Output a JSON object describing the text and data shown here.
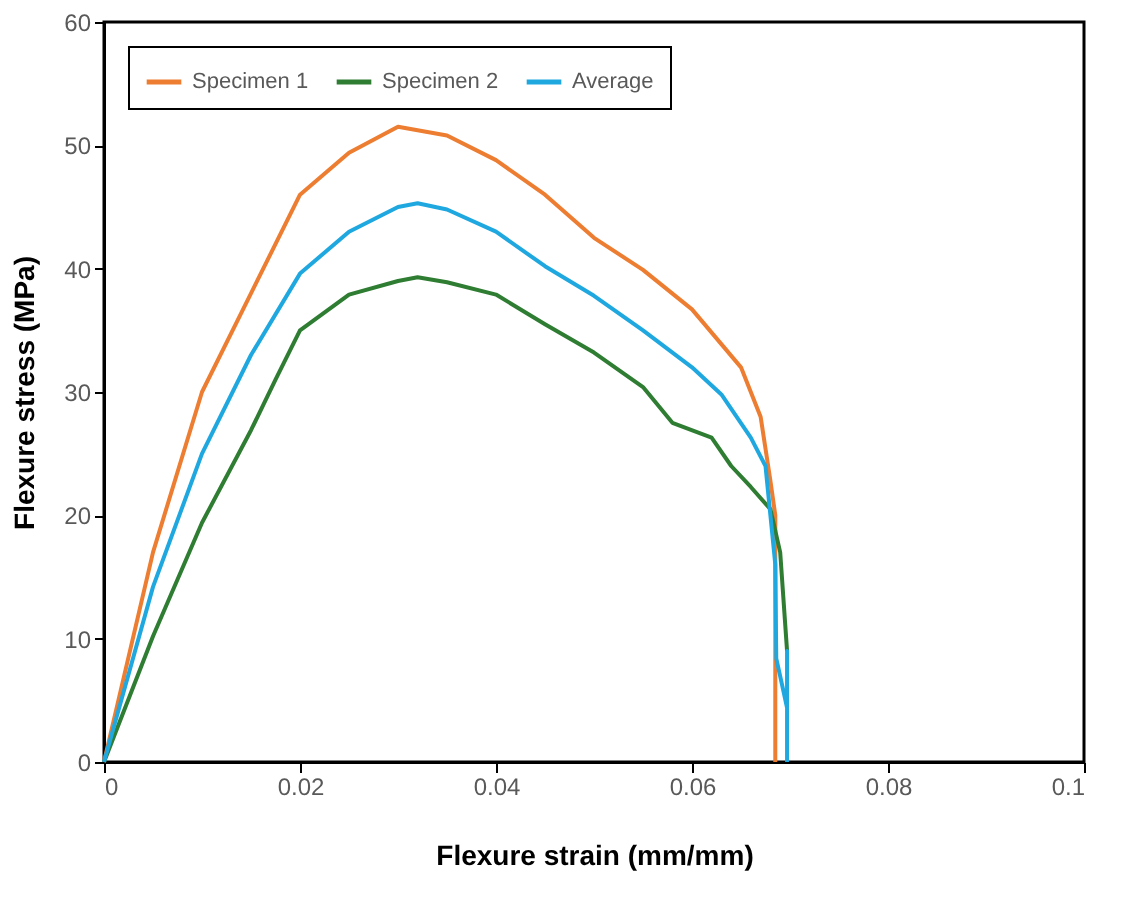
{
  "chart_data": {
    "type": "line",
    "xlabel": "Flexure strain (mm/mm)",
    "ylabel": "Flexure stress (MPa)",
    "xlim": [
      0,
      0.1
    ],
    "xticks": [
      0,
      0.02,
      0.04,
      0.06,
      0.08,
      0.1
    ],
    "ylim": [
      0,
      60
    ],
    "yticks": [
      0,
      10,
      20,
      30,
      40,
      50,
      60
    ],
    "grid": false,
    "legend": "top left",
    "marker": "none",
    "line_style": "solid",
    "series": [
      {
        "name": "Specimen 1",
        "color": "#ed7d31",
        "x": [
          0,
          0.005,
          0.01,
          0.015,
          0.02,
          0.025,
          0.03,
          0.035,
          0.04,
          0.045,
          0.05,
          0.055,
          0.06,
          0.065,
          0.067,
          0.068,
          0.0685,
          0.0685
        ],
        "values": [
          0,
          17,
          30,
          38,
          46,
          49.4,
          51.5,
          50.8,
          48.8,
          46,
          42.5,
          39.9,
          36.7,
          32,
          28,
          22.8,
          20,
          0
        ]
      },
      {
        "name": "Specimen 2",
        "color": "#2e7d32",
        "x": [
          0,
          0.005,
          0.01,
          0.015,
          0.0175,
          0.02,
          0.025,
          0.03,
          0.032,
          0.035,
          0.04,
          0.045,
          0.05,
          0.055,
          0.058,
          0.062,
          0.064,
          0.066,
          0.068,
          0.069,
          0.0697
        ],
        "values": [
          0,
          10.2,
          19.4,
          26.9,
          31,
          35,
          37.9,
          39,
          39.3,
          38.9,
          37.9,
          35.5,
          33.2,
          30.4,
          27.5,
          26.3,
          24,
          22.3,
          20.5,
          17,
          9
        ]
      },
      {
        "name": "Average",
        "color": "#1fa8e0",
        "x": [
          0,
          0.005,
          0.01,
          0.015,
          0.02,
          0.025,
          0.03,
          0.032,
          0.035,
          0.04,
          0.045,
          0.05,
          0.055,
          0.06,
          0.063,
          0.066,
          0.0675,
          0.0685,
          0.0686,
          0.0697,
          0.0697,
          0.0697
        ],
        "values": [
          0,
          14.2,
          25,
          33,
          39.6,
          43,
          45,
          45.3,
          44.8,
          43,
          40.2,
          37.8,
          35,
          32,
          29.8,
          26.3,
          24,
          16,
          8.4,
          4.4,
          9,
          0
        ]
      }
    ]
  }
}
